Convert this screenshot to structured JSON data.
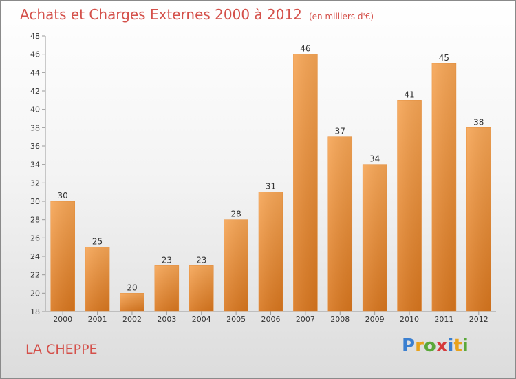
{
  "chart_data": {
    "type": "bar",
    "title": "Achats et Charges Externes 2000 à 2012",
    "subtitle": "(en milliers d'€)",
    "categories": [
      "2000",
      "2001",
      "2002",
      "2003",
      "2004",
      "2005",
      "2006",
      "2007",
      "2008",
      "2009",
      "2010",
      "2011",
      "2012"
    ],
    "values": [
      30,
      25,
      20,
      23,
      23,
      28,
      31,
      46,
      37,
      34,
      41,
      45,
      38
    ],
    "ylim": [
      18,
      48
    ],
    "yticks": [
      18,
      20,
      22,
      24,
      26,
      28,
      30,
      32,
      34,
      36,
      38,
      40,
      42,
      44,
      46,
      48
    ],
    "grid": false,
    "bar_color": "#f0943c"
  },
  "footer": {
    "place": "LA CHEPPE"
  },
  "logo": {
    "text": "Proxiti",
    "letters": [
      {
        "ch": "P",
        "color": "#3a7fd0"
      },
      {
        "ch": "r",
        "color": "#e8a21c"
      },
      {
        "ch": "o",
        "color": "#5aa83a"
      },
      {
        "ch": "x",
        "color": "#d63a3a"
      },
      {
        "ch": "i",
        "color": "#3a7fd0"
      },
      {
        "ch": "t",
        "color": "#e8a21c"
      },
      {
        "ch": "i",
        "color": "#5aa83a"
      }
    ]
  }
}
